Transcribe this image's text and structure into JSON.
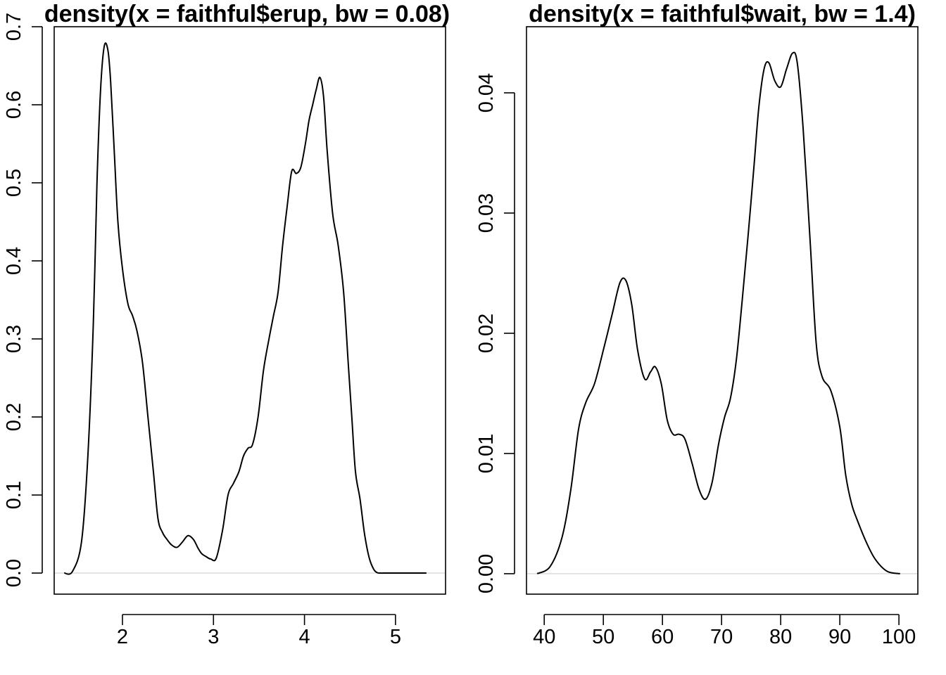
{
  "chart_data": [
    {
      "type": "line",
      "title": "density(x = faithful$erup, bw = 0.08)",
      "xlabel": "",
      "ylabel": "",
      "xlim": [
        1.25,
        5.55
      ],
      "ylim": [
        -0.027,
        0.7
      ],
      "xticks": [
        2,
        3,
        4,
        5
      ],
      "xtick_labels": [
        "2",
        "3",
        "4",
        "5"
      ],
      "yticks": [
        0.0,
        0.1,
        0.2,
        0.3,
        0.4,
        0.5,
        0.6,
        0.7
      ],
      "ytick_labels": [
        "0.0",
        "0.1",
        "0.2",
        "0.3",
        "0.4",
        "0.5",
        "0.6",
        "0.7"
      ],
      "zero_line": true,
      "grid": false,
      "series": [
        {
          "x": [
            1.36,
            1.45,
            1.55,
            1.62,
            1.68,
            1.72,
            1.76,
            1.8,
            1.84,
            1.87,
            1.91,
            1.95,
            2.0,
            2.06,
            2.11,
            2.16,
            2.22,
            2.28,
            2.34,
            2.39,
            2.44,
            2.49,
            2.54,
            2.6,
            2.66,
            2.72,
            2.78,
            2.83,
            2.87,
            2.92,
            2.97,
            3.03,
            3.1,
            3.16,
            3.22,
            3.28,
            3.33,
            3.38,
            3.43,
            3.49,
            3.55,
            3.61,
            3.66,
            3.71,
            3.76,
            3.81,
            3.86,
            3.91,
            3.96,
            4.01,
            4.05,
            4.09,
            4.13,
            4.17,
            4.21,
            4.25,
            4.31,
            4.37,
            4.43,
            4.48,
            4.52,
            4.56,
            4.61,
            4.66,
            4.71,
            4.76,
            4.8,
            4.84,
            4.88,
            4.93,
            5.0,
            5.07,
            5.14,
            5.2,
            5.27,
            5.34
          ],
          "y": [
            0.0,
            0.002,
            0.04,
            0.15,
            0.32,
            0.5,
            0.62,
            0.675,
            0.67,
            0.63,
            0.54,
            0.45,
            0.39,
            0.345,
            0.33,
            0.31,
            0.27,
            0.2,
            0.13,
            0.07,
            0.052,
            0.043,
            0.036,
            0.033,
            0.04,
            0.048,
            0.043,
            0.032,
            0.025,
            0.021,
            0.018,
            0.019,
            0.055,
            0.1,
            0.115,
            0.13,
            0.15,
            0.16,
            0.165,
            0.2,
            0.26,
            0.3,
            0.33,
            0.36,
            0.42,
            0.47,
            0.515,
            0.512,
            0.52,
            0.55,
            0.58,
            0.6,
            0.62,
            0.635,
            0.61,
            0.54,
            0.46,
            0.42,
            0.36,
            0.27,
            0.2,
            0.13,
            0.095,
            0.05,
            0.02,
            0.005,
            0.0005,
            0.0,
            0.0,
            0.0,
            0.0,
            0.0,
            0.0,
            0.0,
            0.0,
            0.0
          ]
        }
      ]
    },
    {
      "type": "line",
      "title": "density(x = faithful$wait, bw = 1.4)",
      "xlabel": "",
      "ylabel": "",
      "xlim": [
        37.0,
        103.2
      ],
      "ylim": [
        -0.0017,
        0.0455
      ],
      "xticks": [
        40,
        50,
        60,
        70,
        80,
        90,
        100
      ],
      "xtick_labels": [
        "40",
        "50",
        "60",
        "70",
        "80",
        "90",
        "100"
      ],
      "yticks": [
        0.0,
        0.01,
        0.02,
        0.03,
        0.04
      ],
      "ytick_labels": [
        "0.00",
        "0.01",
        "0.02",
        "0.03",
        "0.04"
      ],
      "zero_line": true,
      "grid": false,
      "series": [
        {
          "x": [
            38.8,
            41.0,
            43.0,
            44.5,
            45.8,
            47.0,
            48.5,
            50.0,
            51.5,
            52.8,
            53.8,
            54.8,
            55.8,
            57.0,
            58.0,
            58.8,
            59.8,
            60.8,
            61.8,
            62.8,
            63.8,
            65.0,
            66.2,
            67.3,
            68.4,
            69.5,
            70.5,
            71.5,
            72.5,
            73.5,
            74.5,
            75.5,
            76.3,
            77.2,
            78.0,
            79.0,
            80.0,
            81.0,
            82.0,
            82.8,
            83.8,
            85.0,
            86.0,
            87.0,
            88.5,
            90.0,
            91.0,
            92.0,
            93.0,
            94.5,
            96.0,
            98.0,
            100.2
          ],
          "y": [
            0.0,
            0.0006,
            0.003,
            0.007,
            0.012,
            0.0142,
            0.0158,
            0.0186,
            0.0216,
            0.0242,
            0.0244,
            0.0224,
            0.0186,
            0.0162,
            0.0168,
            0.0172,
            0.0158,
            0.0128,
            0.0116,
            0.0116,
            0.0112,
            0.0092,
            0.007,
            0.0062,
            0.0076,
            0.0108,
            0.013,
            0.0146,
            0.0178,
            0.0228,
            0.0282,
            0.034,
            0.0388,
            0.042,
            0.0425,
            0.041,
            0.0405,
            0.042,
            0.0433,
            0.0425,
            0.037,
            0.0275,
            0.0192,
            0.0164,
            0.0152,
            0.0122,
            0.0082,
            0.0058,
            0.0044,
            0.0026,
            0.0012,
            0.0002,
            0.0
          ]
        }
      ]
    }
  ]
}
